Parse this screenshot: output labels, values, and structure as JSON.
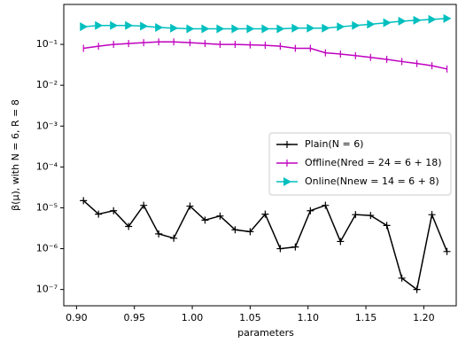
{
  "chart_data": {
    "type": "line",
    "xlabel": "parameters",
    "ylabel": "β(μ), with N = 6, R = 8",
    "log_y": true,
    "legend": "center right",
    "x": [
      0.906,
      0.919,
      0.932,
      0.945,
      0.958,
      0.971,
      0.984,
      0.998,
      1.011,
      1.024,
      1.037,
      1.05,
      1.063,
      1.076,
      1.089,
      1.102,
      1.115,
      1.128,
      1.141,
      1.154,
      1.168,
      1.181,
      1.194,
      1.207,
      1.22
    ],
    "series": [
      {
        "name": "Plain(N = 6)",
        "color": "#000000",
        "marker": "plus",
        "values": [
          1.5e-05,
          7e-06,
          8.5e-06,
          3.5e-06,
          1.15e-05,
          2.3e-06,
          1.8e-06,
          1.1e-05,
          5e-06,
          6.3e-06,
          2.9e-06,
          2.6e-06,
          7e-06,
          1e-06,
          1.1e-06,
          8.5e-06,
          1.15e-05,
          1.5e-06,
          6.8e-06,
          6.5e-06,
          3.7e-06,
          1.9e-07,
          1e-07,
          6.8e-06,
          8.5e-07
        ]
      },
      {
        "name": "Offline(Nred = 24 = 6 + 18)",
        "color": "#bf00bf",
        "marker": "vline",
        "values": [
          0.08,
          0.09,
          0.1,
          0.105,
          0.11,
          0.115,
          0.115,
          0.11,
          0.105,
          0.1,
          0.1,
          0.097,
          0.095,
          0.09,
          0.08,
          0.08,
          0.062,
          0.058,
          0.053,
          0.048,
          0.043,
          0.038,
          0.034,
          0.03,
          0.025
        ]
      },
      {
        "name": "Online(Nnew = 14 = 6 + 8)",
        "color": "#00bfbf",
        "marker": "triangle-right",
        "values": [
          0.27,
          0.29,
          0.29,
          0.29,
          0.28,
          0.26,
          0.25,
          0.24,
          0.24,
          0.24,
          0.24,
          0.24,
          0.24,
          0.24,
          0.25,
          0.25,
          0.25,
          0.27,
          0.29,
          0.31,
          0.34,
          0.37,
          0.39,
          0.41,
          0.43
        ]
      }
    ],
    "xlim": [
      0.889,
      1.228
    ],
    "ylim": [
      4e-08,
      0.95
    ],
    "xticks": [
      {
        "value": 0.9,
        "label": "0.90"
      },
      {
        "value": 0.95,
        "label": "0.95"
      },
      {
        "value": 1.0,
        "label": "1.00"
      },
      {
        "value": 1.05,
        "label": "1.05"
      },
      {
        "value": 1.1,
        "label": "1.10"
      },
      {
        "value": 1.15,
        "label": "1.15"
      },
      {
        "value": 1.2,
        "label": "1.20"
      }
    ],
    "yticks": [
      {
        "value": 1e-07,
        "label": "10⁻⁷"
      },
      {
        "value": 1e-06,
        "label": "10⁻⁶"
      },
      {
        "value": 1e-05,
        "label": "10⁻⁵"
      },
      {
        "value": 0.0001,
        "label": "10⁻⁴"
      },
      {
        "value": 0.001,
        "label": "10⁻³"
      },
      {
        "value": 0.01,
        "label": "10⁻²"
      },
      {
        "value": 0.1,
        "label": "10⁻¹"
      }
    ]
  }
}
